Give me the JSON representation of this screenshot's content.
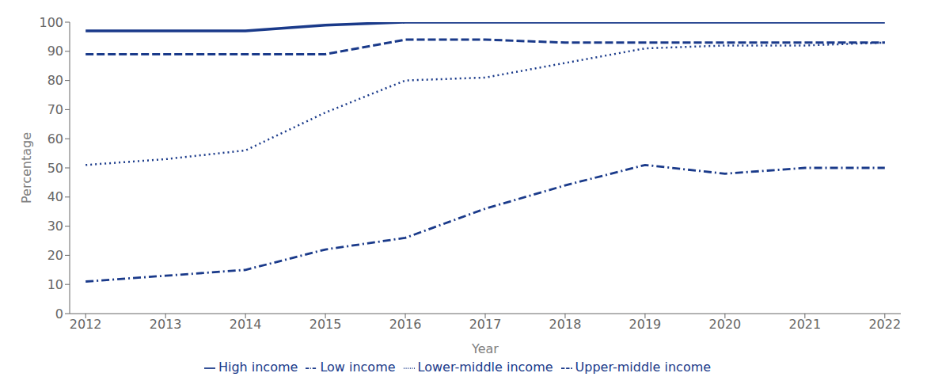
{
  "chart_data": {
    "type": "line",
    "x": [
      2012,
      2013,
      2014,
      2015,
      2016,
      2017,
      2018,
      2019,
      2020,
      2021,
      2022
    ],
    "xlabel": "Year",
    "ylabel": "Percentage",
    "xlim": [
      2011.8,
      2022.2
    ],
    "xticks": [
      2012,
      2013,
      2014,
      2015,
      2016,
      2017,
      2018,
      2019,
      2020,
      2021,
      2022
    ],
    "ylim": [
      0,
      100
    ],
    "yticks": [
      0,
      10,
      20,
      30,
      40,
      50,
      60,
      70,
      80,
      90,
      100
    ],
    "grid": false,
    "legend": "bottom",
    "series": [
      {
        "name": "High income",
        "color": "#1a3a8a",
        "line_style": "solid",
        "values": [
          97,
          97,
          97,
          99,
          100,
          100,
          100,
          100,
          100,
          100,
          100
        ]
      },
      {
        "name": "Upper-middle income",
        "color": "#1a3a8a",
        "line_style": "dashed",
        "values": [
          89,
          89,
          89,
          89,
          94,
          94,
          93,
          93,
          93,
          93,
          93
        ]
      },
      {
        "name": "Lower-middle income",
        "color": "#1a3a8a",
        "line_style": "dotted",
        "values": [
          51,
          53,
          56,
          69,
          80,
          81,
          86,
          91,
          92,
          92,
          93
        ]
      },
      {
        "name": "Low income",
        "color": "#1a3a8a",
        "line_style": "dashdot",
        "values": [
          11,
          13,
          15,
          22,
          26,
          36,
          44,
          51,
          48,
          50,
          50
        ]
      }
    ]
  }
}
